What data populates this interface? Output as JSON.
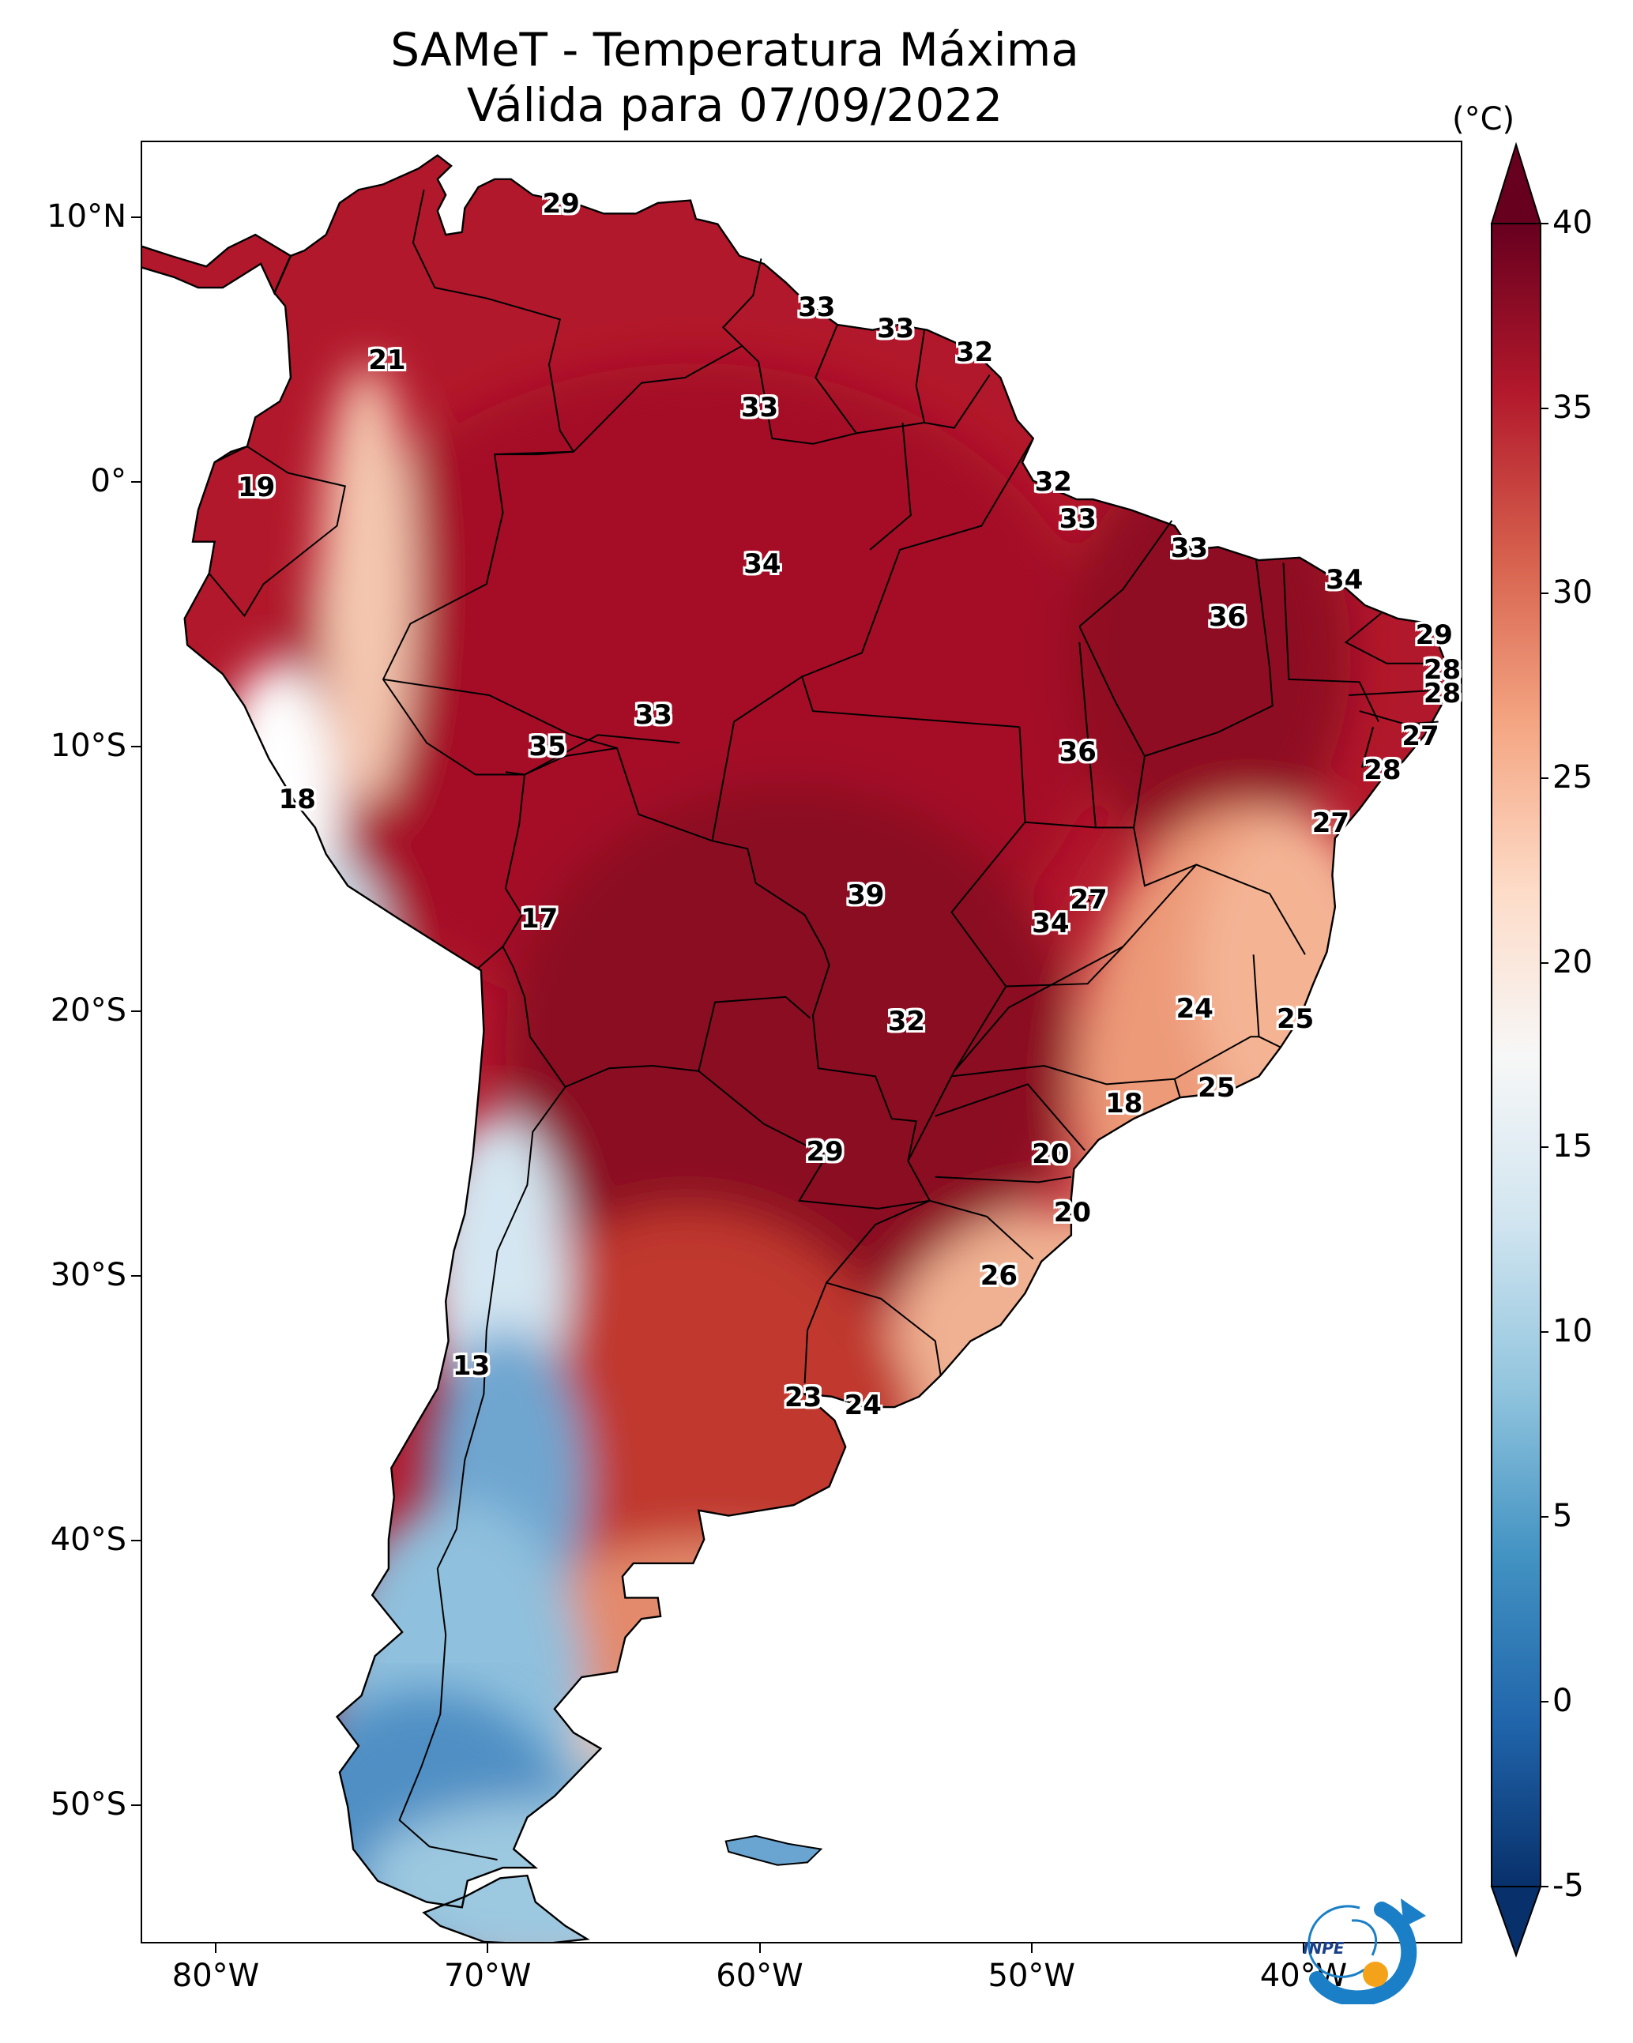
{
  "title": {
    "line1": "SAMeT - Temperatura Máxima",
    "line2": "Válida para 07/09/2022"
  },
  "axes": {
    "lat_labels": [
      "10°N",
      "0°",
      "10°S",
      "20°S",
      "30°S",
      "40°S",
      "50°S"
    ],
    "lon_labels": [
      "80°W",
      "70°W",
      "60°W",
      "50°W",
      "40°W"
    ]
  },
  "colorbar": {
    "unit": "(°C)",
    "labels": [
      "40",
      "35",
      "30",
      "25",
      "20",
      "15",
      "10",
      "5",
      "0",
      "-5"
    ],
    "min": -5,
    "max": 40,
    "colors": [
      "#08306b",
      "#2166ac",
      "#4393c3",
      "#92c5de",
      "#d1e5f0",
      "#f7f7f7",
      "#fddbc7",
      "#f4a582",
      "#d6604d",
      "#b2182b",
      "#67001f"
    ]
  },
  "temperature_points": [
    {
      "value": "29",
      "lon": -67.3,
      "lat": 10.5
    },
    {
      "value": "21",
      "lon": -73.7,
      "lat": 4.6
    },
    {
      "value": "33",
      "lon": -57.9,
      "lat": 6.6
    },
    {
      "value": "33",
      "lon": -55.0,
      "lat": 5.8
    },
    {
      "value": "32",
      "lon": -52.1,
      "lat": 4.9
    },
    {
      "value": "33",
      "lon": -60.0,
      "lat": 2.8
    },
    {
      "value": "19",
      "lon": -78.5,
      "lat": -0.2
    },
    {
      "value": "32",
      "lon": -49.2,
      "lat": 0.0
    },
    {
      "value": "33",
      "lon": -48.3,
      "lat": -1.4
    },
    {
      "value": "34",
      "lon": -59.9,
      "lat": -3.1
    },
    {
      "value": "33",
      "lon": -44.2,
      "lat": -2.5
    },
    {
      "value": "34",
      "lon": -38.5,
      "lat": -3.7
    },
    {
      "value": "36",
      "lon": -42.8,
      "lat": -5.1
    },
    {
      "value": "29",
      "lon": -35.2,
      "lat": -5.8
    },
    {
      "value": "28",
      "lon": -34.9,
      "lat": -7.1
    },
    {
      "value": "28",
      "lon": -34.9,
      "lat": -8.0
    },
    {
      "value": "33",
      "lon": -63.9,
      "lat": -8.8
    },
    {
      "value": "35",
      "lon": -67.8,
      "lat": -10.0
    },
    {
      "value": "36",
      "lon": -48.3,
      "lat": -10.2
    },
    {
      "value": "27",
      "lon": -35.7,
      "lat": -9.6
    },
    {
      "value": "28",
      "lon": -37.1,
      "lat": -10.9
    },
    {
      "value": "18",
      "lon": -77.0,
      "lat": -12.0
    },
    {
      "value": "27",
      "lon": -39.0,
      "lat": -12.9
    },
    {
      "value": "39",
      "lon": -56.1,
      "lat": -15.6
    },
    {
      "value": "27",
      "lon": -47.9,
      "lat": -15.8
    },
    {
      "value": "34",
      "lon": -49.3,
      "lat": -16.7
    },
    {
      "value": "17",
      "lon": -68.1,
      "lat": -16.5
    },
    {
      "value": "24",
      "lon": -44.0,
      "lat": -19.9
    },
    {
      "value": "25",
      "lon": -40.3,
      "lat": -20.3
    },
    {
      "value": "32",
      "lon": -54.6,
      "lat": -20.4
    },
    {
      "value": "25",
      "lon": -43.2,
      "lat": -22.9
    },
    {
      "value": "18",
      "lon": -46.6,
      "lat": -23.5
    },
    {
      "value": "29",
      "lon": -57.6,
      "lat": -25.3
    },
    {
      "value": "20",
      "lon": -49.3,
      "lat": -25.4
    },
    {
      "value": "20",
      "lon": -48.5,
      "lat": -27.6
    },
    {
      "value": "26",
      "lon": -51.2,
      "lat": -30.0
    },
    {
      "value": "13",
      "lon": -70.6,
      "lat": -33.4
    },
    {
      "value": "23",
      "lon": -58.4,
      "lat": -34.6
    },
    {
      "value": "24",
      "lon": -56.2,
      "lat": -34.9
    }
  ],
  "logo": {
    "text": "INPE"
  }
}
